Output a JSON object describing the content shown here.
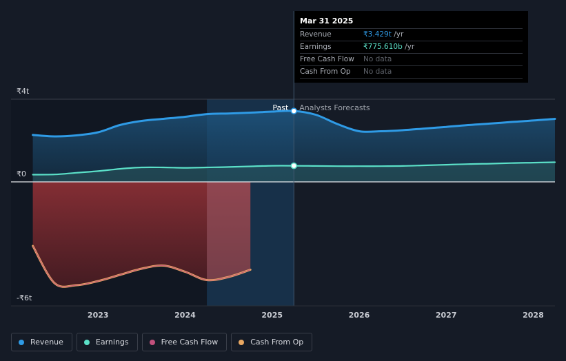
{
  "tooltip": {
    "date": "Mar 31 2025",
    "rows": [
      {
        "name": "Revenue",
        "value": "₹3.429t",
        "unit": " /yr",
        "color": "#2f9be6"
      },
      {
        "name": "Earnings",
        "value": "₹775.610b",
        "unit": " /yr",
        "color": "#5be0c8"
      },
      {
        "name": "Free Cash Flow",
        "value": "No data",
        "unit": "",
        "color": "#5f636b"
      },
      {
        "name": "Cash From Op",
        "value": "No data",
        "unit": "",
        "color": "#5f636b"
      }
    ]
  },
  "regions": {
    "past": "Past",
    "forecast": "Analysts Forecasts"
  },
  "legend": [
    {
      "label": "Revenue",
      "color": "#2f9be6"
    },
    {
      "label": "Earnings",
      "color": "#5be0c8"
    },
    {
      "label": "Free Cash Flow",
      "color": "#c2507c"
    },
    {
      "label": "Cash From Op",
      "color": "#e9a862"
    }
  ],
  "chart_data": {
    "type": "area",
    "y_tick_labels": [
      "₹4t",
      "₹0",
      "-₹6t"
    ],
    "y_ticks": [
      4,
      0,
      -6
    ],
    "ylim": [
      -6,
      4
    ],
    "x_tick_labels": [
      "2023",
      "2024",
      "2025",
      "2026",
      "2027",
      "2028"
    ],
    "x_ticks": [
      2023,
      2024,
      2025,
      2026,
      2027,
      2028
    ],
    "xlim": [
      2022.0,
      2028.25
    ],
    "past_end": 2025.25,
    "highlight_start": 2024.25,
    "series": [
      {
        "name": "Revenue",
        "color": "#2f9be6",
        "x": [
          2022.25,
          2022.5,
          2022.75,
          2023.0,
          2023.25,
          2023.5,
          2023.75,
          2024.0,
          2024.25,
          2024.5,
          2024.75,
          2025.0,
          2025.25,
          2025.5,
          2025.75,
          2026.0,
          2026.25,
          2026.5,
          2026.75,
          2027.0,
          2027.25,
          2027.5,
          2027.75,
          2028.0,
          2028.25
        ],
        "values": [
          2.27,
          2.2,
          2.25,
          2.4,
          2.75,
          2.95,
          3.05,
          3.15,
          3.28,
          3.31,
          3.35,
          3.4,
          3.43,
          3.25,
          2.8,
          2.45,
          2.45,
          2.5,
          2.58,
          2.66,
          2.75,
          2.82,
          2.9,
          2.97,
          3.05
        ]
      },
      {
        "name": "Earnings",
        "color": "#5be0c8",
        "x": [
          2022.25,
          2022.5,
          2022.75,
          2023.0,
          2023.25,
          2023.5,
          2023.75,
          2024.0,
          2024.25,
          2024.5,
          2024.75,
          2025.0,
          2025.25,
          2025.5,
          2025.75,
          2026.0,
          2026.25,
          2026.5,
          2026.75,
          2027.0,
          2027.25,
          2027.5,
          2027.75,
          2028.0,
          2028.25
        ],
        "values": [
          0.35,
          0.36,
          0.44,
          0.52,
          0.63,
          0.7,
          0.7,
          0.68,
          0.7,
          0.72,
          0.75,
          0.78,
          0.78,
          0.77,
          0.76,
          0.76,
          0.76,
          0.77,
          0.8,
          0.83,
          0.86,
          0.88,
          0.91,
          0.93,
          0.95
        ]
      },
      {
        "name": "Cash From Op",
        "color": "#e9a862",
        "x": [
          2022.25,
          2022.5,
          2022.75,
          2023.0,
          2023.25,
          2023.5,
          2023.75,
          2024.0,
          2024.25,
          2024.5,
          2024.75
        ],
        "values": [
          -3.1,
          -4.9,
          -5.0,
          -4.8,
          -4.5,
          -4.2,
          -4.05,
          -4.35,
          -4.75,
          -4.6,
          -4.25
        ]
      },
      {
        "name": "Free Cash Flow",
        "color": "#c2507c",
        "x": [
          2022.25,
          2022.5,
          2022.75,
          2023.0,
          2023.25,
          2023.5,
          2023.75,
          2024.0,
          2024.25,
          2024.5,
          2024.75
        ],
        "values": [
          -3.1,
          -4.9,
          -5.0,
          -4.8,
          -4.5,
          -4.2,
          -4.05,
          -4.35,
          -4.75,
          -4.6,
          -4.25
        ]
      }
    ]
  }
}
